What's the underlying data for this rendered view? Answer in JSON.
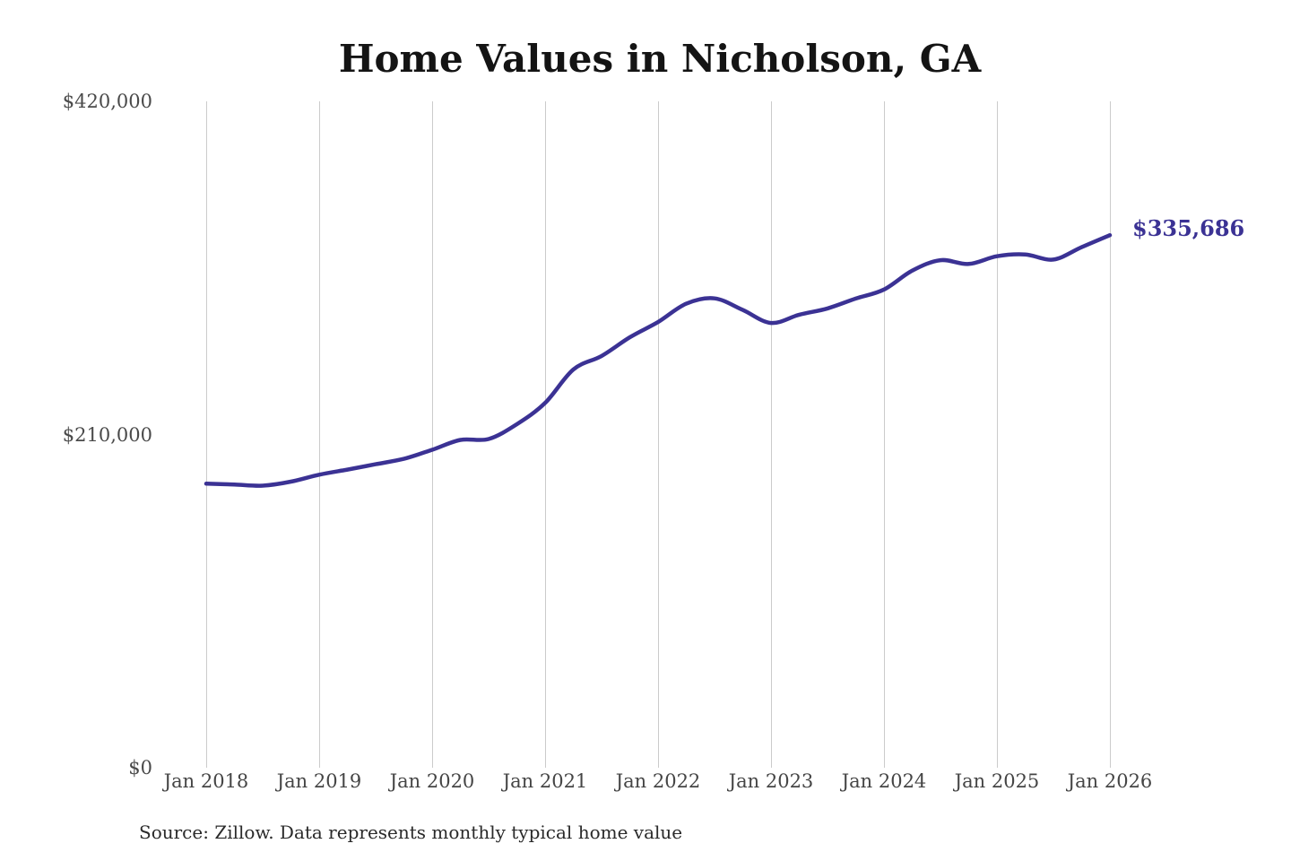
{
  "chart_data": {
    "type": "line",
    "title": "Home Values in Nicholson, GA",
    "xlabel": "",
    "ylabel": "",
    "ylim": [
      0,
      420000
    ],
    "xlim": [
      "Jan 2018",
      "Jan 2026"
    ],
    "grid": "vertical-only",
    "legend": "none",
    "line_color": "#3b3294",
    "gridline_color": "#cbcbcb",
    "end_label": "$335,686",
    "source": "Source: Zillow. Data represents monthly typical home value",
    "y_ticks": [
      {
        "value": 420000,
        "label": "$420,000"
      },
      {
        "value": 210000,
        "label": "$210,000"
      },
      {
        "value": 0,
        "label": "$0"
      }
    ],
    "x_ticks": [
      {
        "year": 2018,
        "label": "Jan 2018"
      },
      {
        "year": 2019,
        "label": "Jan 2019"
      },
      {
        "year": 2020,
        "label": "Jan 2020"
      },
      {
        "year": 2021,
        "label": "Jan 2021"
      },
      {
        "year": 2022,
        "label": "Jan 2022"
      },
      {
        "year": 2023,
        "label": "Jan 2023"
      },
      {
        "year": 2024,
        "label": "Jan 2024"
      },
      {
        "year": 2025,
        "label": "Jan 2025"
      },
      {
        "year": 2026,
        "label": "Jan 2026"
      }
    ],
    "series": [
      {
        "name": "Monthly typical home value",
        "points": [
          {
            "date": "2018-01",
            "value": 179000
          },
          {
            "date": "2018-04",
            "value": 178500
          },
          {
            "date": "2018-07",
            "value": 177800
          },
          {
            "date": "2018-10",
            "value": 180300
          },
          {
            "date": "2019-01",
            "value": 184700
          },
          {
            "date": "2019-04",
            "value": 187900
          },
          {
            "date": "2019-07",
            "value": 191300
          },
          {
            "date": "2019-10",
            "value": 194700
          },
          {
            "date": "2020-01",
            "value": 200400
          },
          {
            "date": "2020-04",
            "value": 206600
          },
          {
            "date": "2020-07",
            "value": 207200
          },
          {
            "date": "2020-10",
            "value": 216500
          },
          {
            "date": "2021-01",
            "value": 229900
          },
          {
            "date": "2021-04",
            "value": 251000
          },
          {
            "date": "2021-07",
            "value": 259500
          },
          {
            "date": "2021-10",
            "value": 271300
          },
          {
            "date": "2022-01",
            "value": 280900
          },
          {
            "date": "2022-04",
            "value": 292500
          },
          {
            "date": "2022-07",
            "value": 295800
          },
          {
            "date": "2022-10",
            "value": 288500
          },
          {
            "date": "2023-01",
            "value": 280300
          },
          {
            "date": "2023-04",
            "value": 285500
          },
          {
            "date": "2023-07",
            "value": 289500
          },
          {
            "date": "2023-10",
            "value": 295700
          },
          {
            "date": "2024-01",
            "value": 301400
          },
          {
            "date": "2024-04",
            "value": 313300
          },
          {
            "date": "2024-07",
            "value": 319900
          },
          {
            "date": "2024-10",
            "value": 317500
          },
          {
            "date": "2025-01",
            "value": 322400
          },
          {
            "date": "2025-04",
            "value": 323500
          },
          {
            "date": "2025-07",
            "value": 320300
          },
          {
            "date": "2025-10",
            "value": 328100
          },
          {
            "date": "2026-01",
            "value": 335686
          }
        ]
      }
    ]
  }
}
